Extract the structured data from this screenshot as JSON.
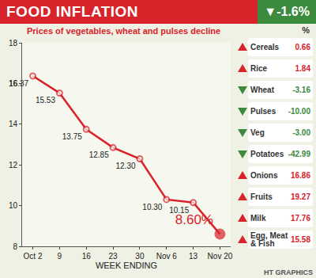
{
  "header": {
    "badge": "▼-1.6%",
    "credit": "HT GRAPHICS"
  },
  "chart_data": {
    "type": "line",
    "title": "FOOD INFLATION",
    "subtitle": "Prices of vegetables, wheat and pulses decline",
    "x_label": "WEEK ENDING",
    "categories": [
      "Oct 2",
      "9",
      "16",
      "23",
      "30",
      "Nov 6",
      "13",
      "Nov 20"
    ],
    "values": [
      16.37,
      15.53,
      13.75,
      12.85,
      12.3,
      10.3,
      10.15,
      8.6
    ],
    "value_labels": [
      "16.37",
      "15.53",
      "13.75",
      "12.85",
      "12.30",
      "10.30",
      "10.15",
      "8.60%"
    ],
    "data_labels": true,
    "color": "#d8232a",
    "marker": "circle",
    "line_style": "solid",
    "ylim": [
      8,
      18
    ],
    "yticks": [
      8,
      10,
      12,
      14,
      16,
      18
    ],
    "grid": false
  },
  "table": {
    "header": "%",
    "rows": [
      {
        "label": "Cereals",
        "value": 0.66,
        "value_label": "0.66"
      },
      {
        "label": "Rice",
        "value": 1.84,
        "value_label": "1.84"
      },
      {
        "label": "Wheat",
        "value": -3.16,
        "value_label": "-3.16"
      },
      {
        "label": "Pulses",
        "value": -10,
        "value_label": "-10.00"
      },
      {
        "label": "Veg",
        "value": -3,
        "value_label": "-3.00"
      },
      {
        "label": "Potatoes",
        "value": -42.99,
        "value_label": "-42.99"
      },
      {
        "label": "Onions",
        "value": 16.86,
        "value_label": "16.86"
      },
      {
        "label": "Fruits",
        "value": 19.27,
        "value_label": "19.27"
      },
      {
        "label": "Milk",
        "value": 17.76,
        "value_label": "17.76"
      },
      {
        "label": "Egg, Meat & Fish",
        "value": 15.58,
        "value_label": "15.58"
      }
    ]
  }
}
